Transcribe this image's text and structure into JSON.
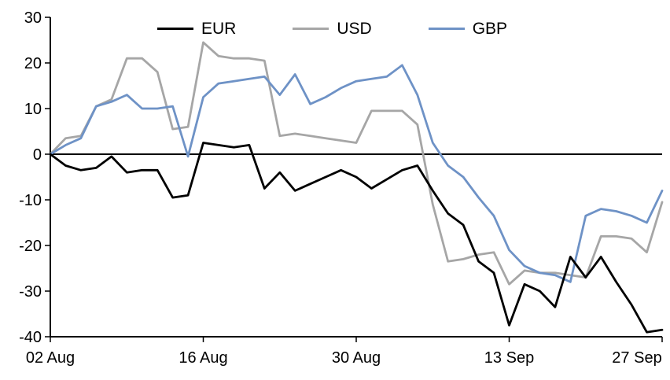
{
  "page": {
    "background": "#ffffff"
  },
  "chart_data": {
    "type": "line",
    "title": "",
    "xlabel": "",
    "ylabel": "",
    "grid": false,
    "legend_position": "top-center-inside",
    "axis_color": "#000000",
    "ylim": [
      -40,
      30
    ],
    "yticks": [
      30,
      20,
      10,
      0,
      -10,
      -20,
      -30,
      -40
    ],
    "xtick_indices": [
      0,
      10,
      20,
      30,
      40
    ],
    "xtick_labels": [
      "02 Aug",
      "16 Aug",
      "30 Aug",
      "13 Sep",
      "27 Sep"
    ],
    "x": [
      "02 Aug",
      "03 Aug",
      "04 Aug",
      "05 Aug",
      "06 Aug",
      "09 Aug",
      "10 Aug",
      "11 Aug",
      "12 Aug",
      "13 Aug",
      "16 Aug",
      "17 Aug",
      "18 Aug",
      "19 Aug",
      "20 Aug",
      "23 Aug",
      "24 Aug",
      "25 Aug",
      "26 Aug",
      "27 Aug",
      "30 Aug",
      "31 Aug",
      "01 Sep",
      "02 Sep",
      "03 Sep",
      "06 Sep",
      "07 Sep",
      "08 Sep",
      "09 Sep",
      "10 Sep",
      "13 Sep",
      "14 Sep",
      "15 Sep",
      "16 Sep",
      "17 Sep",
      "20 Sep",
      "21 Sep",
      "22 Sep",
      "23 Sep",
      "24 Sep",
      "27 Sep"
    ],
    "series": [
      {
        "name": "EUR",
        "color": "#000000",
        "values": [
          0,
          -2.5,
          -3.5,
          -3,
          -0.5,
          -4,
          -3.5,
          -3.5,
          -9.5,
          -9,
          2.5,
          2,
          1.5,
          2,
          -7.5,
          -4,
          -8,
          -6.5,
          -5,
          -3.5,
          -5,
          -7.5,
          -5.5,
          -3.5,
          -2.5,
          -8,
          -13,
          -15.5,
          -23.5,
          -26,
          -37.5,
          -28.5,
          -30,
          -33.5,
          -22.5,
          -27,
          -22.5,
          -28,
          -33,
          -39,
          -38.5
        ]
      },
      {
        "name": "USD",
        "color": "#a6a6a6",
        "values": [
          0,
          3.5,
          4,
          10.5,
          12,
          21,
          21,
          18,
          5.5,
          6,
          24.5,
          21.5,
          21,
          21,
          20.5,
          4,
          4.5,
          4,
          3.5,
          3,
          2.5,
          9.5,
          9.5,
          9.5,
          6.5,
          -11,
          -23.5,
          -23,
          -22,
          -21.5,
          -28.5,
          -25.5,
          -26,
          -26,
          -26.5,
          -27,
          -18,
          -18,
          -18.5,
          -21.5,
          -10.5
        ]
      },
      {
        "name": "GBP",
        "color": "#6e92c6",
        "values": [
          0,
          2,
          3.5,
          10.5,
          11.5,
          13,
          10,
          10,
          10.5,
          -0.5,
          12.5,
          15.5,
          16,
          16.5,
          17,
          13,
          17.5,
          11,
          12.5,
          14.5,
          16,
          16.5,
          17,
          19.5,
          13,
          2.5,
          -2.5,
          -5,
          -9.5,
          -13.5,
          -21,
          -24.5,
          -26,
          -26.5,
          -28,
          -13.5,
          -12,
          -12.5,
          -13.5,
          -15,
          -8
        ]
      }
    ]
  }
}
